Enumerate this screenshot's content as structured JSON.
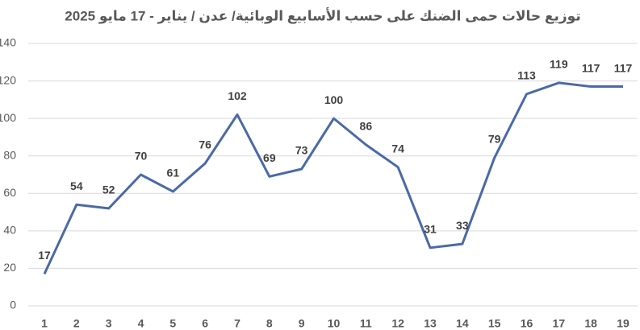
{
  "chart_data": {
    "type": "line",
    "title": "توزيع حالات حمى الضنك على حسب الأسابيع الوبائية/ عدن / يناير - 17 مايو 2025",
    "categories": [
      1,
      2,
      3,
      4,
      5,
      6,
      7,
      8,
      9,
      10,
      11,
      12,
      13,
      14,
      15,
      16,
      17,
      18,
      19
    ],
    "series": [
      {
        "name": "حالات",
        "color": "#4a69a8",
        "values": [
          17,
          54,
          52,
          70,
          61,
          76,
          102,
          69,
          73,
          100,
          86,
          74,
          31,
          33,
          79,
          113,
          119,
          117,
          117
        ]
      }
    ],
    "ylim": [
      0,
      140
    ],
    "yticks": [
      0,
      20,
      40,
      60,
      80,
      100,
      120,
      140
    ],
    "grid": true
  }
}
